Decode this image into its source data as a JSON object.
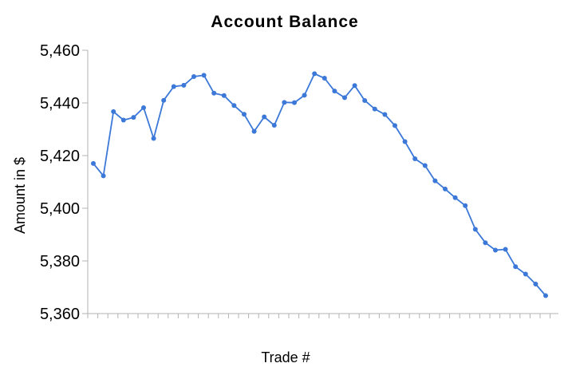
{
  "chart_data": {
    "type": "line",
    "title": "Account Balance",
    "xlabel": "Trade #",
    "ylabel": "Amount in $",
    "ylim": [
      5360,
      5460
    ],
    "yticks": [
      "5,360",
      "5,380",
      "5,400",
      "5,420",
      "5,440",
      "5,460"
    ],
    "grid": false,
    "legend": "none",
    "series": [
      {
        "color": "#3c78d8",
        "x": [
          1,
          2,
          3,
          4,
          5,
          6,
          7,
          8,
          9,
          10,
          11,
          12,
          13,
          14,
          15,
          16,
          17,
          18,
          19,
          20,
          21,
          22,
          23,
          24,
          25,
          26,
          27,
          28,
          29,
          30,
          31,
          32,
          33,
          34,
          35,
          36,
          37,
          38,
          39,
          40,
          41,
          42,
          43,
          44,
          45,
          46
        ],
        "values": [
          5417,
          5412.3,
          5436.7,
          5433.5,
          5434.5,
          5438.2,
          5426.5,
          5441,
          5446.2,
          5446.7,
          5450,
          5450.5,
          5443.7,
          5442.8,
          5439,
          5435.7,
          5429.2,
          5434.7,
          5431.5,
          5440.2,
          5440.1,
          5442.9,
          5451.1,
          5449.4,
          5444.5,
          5442,
          5446.6,
          5440.9,
          5437.7,
          5435.6,
          5431.4,
          5425.3,
          5418.8,
          5416.2,
          5410.4,
          5407.3,
          5404,
          5401,
          5392,
          5386.9,
          5384.1,
          5384.4,
          5377.8,
          5375,
          5371.2,
          5366.8
        ]
      }
    ]
  }
}
